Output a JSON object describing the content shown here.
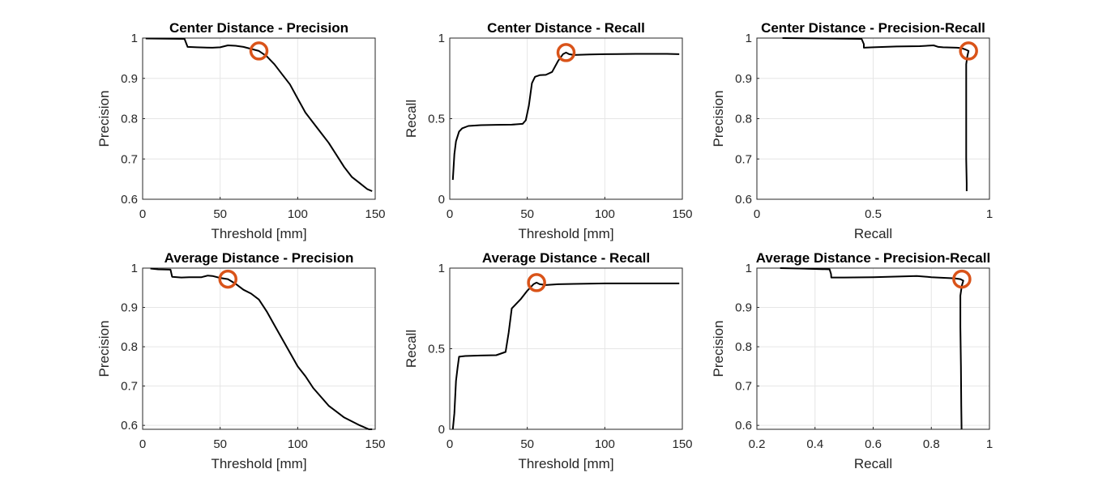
{
  "colors": {
    "curve": "#000000",
    "marker": "#d95319",
    "grid": "#e6e6e6",
    "axis": "#262626"
  },
  "chart_data": [
    {
      "type": "line",
      "title": "Center Distance - Precision",
      "xlabel": "Threshold [mm]",
      "ylabel": "Precision",
      "xlim": [
        0,
        150
      ],
      "ylim": [
        0.6,
        1
      ],
      "xticks": [
        0,
        50,
        100,
        150
      ],
      "xticklabels": [
        "0",
        "50",
        "100",
        "150"
      ],
      "yticks": [
        0.6,
        0.7,
        0.8,
        0.9,
        1
      ],
      "yticklabels": [
        "0.6",
        "0.7",
        "0.8",
        "0.9",
        "1"
      ],
      "grid": true,
      "x": [
        2,
        27,
        29,
        35,
        45,
        50,
        55,
        60,
        65,
        70,
        75,
        80,
        85,
        90,
        95,
        100,
        105,
        110,
        115,
        120,
        125,
        130,
        135,
        140,
        145,
        148
      ],
      "y": [
        0.999,
        0.998,
        0.978,
        0.977,
        0.976,
        0.977,
        0.982,
        0.981,
        0.978,
        0.973,
        0.968,
        0.955,
        0.935,
        0.91,
        0.885,
        0.85,
        0.815,
        0.79,
        0.765,
        0.74,
        0.71,
        0.68,
        0.655,
        0.64,
        0.625,
        0.62
      ],
      "highlight": {
        "x": 75,
        "y": 0.968
      }
    },
    {
      "type": "line",
      "title": "Center Distance - Recall",
      "xlabel": "Threshold [mm]",
      "ylabel": "Recall",
      "xlim": [
        0,
        150
      ],
      "ylim": [
        0,
        1
      ],
      "xticks": [
        0,
        50,
        100,
        150
      ],
      "xticklabels": [
        "0",
        "50",
        "100",
        "150"
      ],
      "yticks": [
        0,
        0.5,
        1
      ],
      "yticklabels": [
        "0",
        "0.5",
        "1"
      ],
      "grid": true,
      "x": [
        2,
        3,
        4,
        6,
        8,
        12,
        20,
        30,
        40,
        47,
        49,
        51,
        53,
        55,
        58,
        62,
        66,
        70,
        73,
        75,
        77,
        80,
        90,
        100,
        120,
        140,
        148
      ],
      "y": [
        0.12,
        0.28,
        0.36,
        0.42,
        0.44,
        0.455,
        0.46,
        0.462,
        0.463,
        0.468,
        0.49,
        0.58,
        0.72,
        0.76,
        0.77,
        0.772,
        0.79,
        0.86,
        0.9,
        0.91,
        0.9,
        0.895,
        0.898,
        0.9,
        0.902,
        0.902,
        0.9
      ],
      "highlight": {
        "x": 75,
        "y": 0.91
      }
    },
    {
      "type": "line",
      "title": "Center Distance - Precision-Recall",
      "xlabel": "Recall",
      "ylabel": "Precision",
      "xlim": [
        0,
        1
      ],
      "ylim": [
        0.6,
        1
      ],
      "xticks": [
        0,
        0.5,
        1
      ],
      "xticklabels": [
        "0",
        "0.5",
        "1"
      ],
      "yticks": [
        0.6,
        0.7,
        0.8,
        0.9,
        1
      ],
      "yticklabels": [
        "0.6",
        "0.7",
        "0.8",
        "0.9",
        "1"
      ],
      "grid": true,
      "x": [
        0.11,
        0.3,
        0.45,
        0.46,
        0.46,
        0.5,
        0.6,
        0.7,
        0.76,
        0.78,
        0.8,
        0.86,
        0.88,
        0.895,
        0.91,
        0.905,
        0.9,
        0.9,
        0.9,
        0.9,
        0.9,
        0.902,
        0.902
      ],
      "y": [
        1.0,
        0.999,
        0.998,
        0.985,
        0.976,
        0.977,
        0.979,
        0.98,
        0.982,
        0.978,
        0.977,
        0.976,
        0.975,
        0.972,
        0.968,
        0.955,
        0.935,
        0.9,
        0.85,
        0.79,
        0.7,
        0.64,
        0.62
      ],
      "highlight": {
        "x": 0.91,
        "y": 0.968
      }
    },
    {
      "type": "line",
      "title": "Average Distance - Precision",
      "xlabel": "Threshold [mm]",
      "ylabel": "Precision",
      "xlim": [
        0,
        150
      ],
      "ylim": [
        0.59,
        1
      ],
      "xticks": [
        0,
        50,
        100,
        150
      ],
      "xticklabels": [
        "0",
        "50",
        "100",
        "150"
      ],
      "yticks": [
        0.6,
        0.7,
        0.8,
        0.9,
        1
      ],
      "yticklabels": [
        "0.6",
        "0.7",
        "0.8",
        "0.9",
        "1"
      ],
      "grid": true,
      "x": [
        5,
        10,
        18,
        19,
        25,
        30,
        38,
        42,
        45,
        50,
        55,
        60,
        65,
        70,
        75,
        80,
        85,
        90,
        95,
        100,
        105,
        110,
        120,
        130,
        140,
        146,
        148
      ],
      "y": [
        0.999,
        0.997,
        0.996,
        0.978,
        0.976,
        0.977,
        0.977,
        0.981,
        0.98,
        0.975,
        0.972,
        0.96,
        0.945,
        0.935,
        0.92,
        0.89,
        0.855,
        0.82,
        0.785,
        0.75,
        0.725,
        0.695,
        0.65,
        0.62,
        0.6,
        0.59,
        0.59
      ],
      "highlight": {
        "x": 55,
        "y": 0.972
      }
    },
    {
      "type": "line",
      "title": "Average Distance - Recall",
      "xlabel": "Threshold [mm]",
      "ylabel": "Recall",
      "xlim": [
        0,
        150
      ],
      "ylim": [
        0,
        1
      ],
      "xticks": [
        0,
        50,
        100,
        150
      ],
      "xticklabels": [
        "0",
        "50",
        "100",
        "150"
      ],
      "yticks": [
        0,
        0.5,
        1
      ],
      "yticklabels": [
        "0",
        "0.5",
        "1"
      ],
      "grid": true,
      "x": [
        2,
        3,
        4,
        5,
        6,
        10,
        20,
        30,
        36,
        38,
        40,
        42,
        46,
        50,
        54,
        56,
        58,
        62,
        70,
        80,
        100,
        120,
        148
      ],
      "y": [
        0.0,
        0.1,
        0.3,
        0.38,
        0.45,
        0.455,
        0.458,
        0.46,
        0.48,
        0.6,
        0.75,
        0.77,
        0.81,
        0.86,
        0.9,
        0.91,
        0.9,
        0.895,
        0.9,
        0.902,
        0.905,
        0.905,
        0.905
      ],
      "highlight": {
        "x": 56,
        "y": 0.91
      }
    },
    {
      "type": "line",
      "title": "Average Distance - Precision-Recall",
      "xlabel": "Recall",
      "ylabel": "Precision",
      "xlim": [
        0.2,
        1
      ],
      "ylim": [
        0.59,
        1
      ],
      "xticks": [
        0.2,
        0.4,
        0.6,
        0.8,
        1
      ],
      "xticklabels": [
        "0.2",
        "0.4",
        "0.6",
        "0.8",
        "1"
      ],
      "yticks": [
        0.6,
        0.7,
        0.8,
        0.9,
        1
      ],
      "yticklabels": [
        "0.6",
        "0.7",
        "0.8",
        "0.9",
        "1"
      ],
      "grid": true,
      "x": [
        0.28,
        0.35,
        0.45,
        0.455,
        0.456,
        0.5,
        0.6,
        0.7,
        0.75,
        0.8,
        0.85,
        0.88,
        0.9,
        0.91,
        0.905,
        0.9,
        0.9,
        0.902,
        0.903,
        0.904
      ],
      "y": [
        1.0,
        0.999,
        0.997,
        0.985,
        0.976,
        0.976,
        0.977,
        0.979,
        0.98,
        0.977,
        0.975,
        0.974,
        0.972,
        0.968,
        0.955,
        0.93,
        0.85,
        0.75,
        0.65,
        0.59
      ],
      "highlight": {
        "x": 0.905,
        "y": 0.972
      }
    }
  ]
}
